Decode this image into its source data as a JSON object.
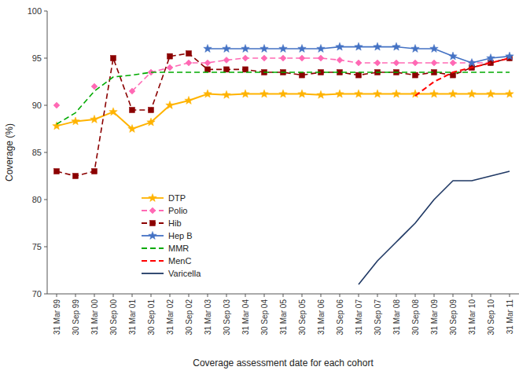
{
  "chart_data": {
    "type": "line",
    "xlabel": "Coverage assessment date for each cohort",
    "ylabel": "Coverage (%)",
    "categories": [
      "31 Mar 99",
      "30 Sep 99",
      "31 Mar 00",
      "30 Sep 00",
      "31 Mar 01",
      "30 Sep 01",
      "31 Mar 02",
      "30 Sep 02",
      "31 Mar 03",
      "30 Sep 03",
      "31 Mar 04",
      "30 Sep 04",
      "31 Mar 05",
      "30 Sep 05",
      "31 Mar 06",
      "30 Sep 06",
      "31 Mar 07",
      "30 Sep 07",
      "31 Mar 08",
      "30 Sep 08",
      "31 Mar 09",
      "30 Sep 09",
      "31 Mar 10",
      "30 Sep 10",
      "31 Mar 11"
    ],
    "series": [
      {
        "name": "DTP",
        "color": "#FFB300",
        "line_style": "solid",
        "marker": "star",
        "values": [
          87.8,
          88.3,
          88.5,
          89.3,
          87.5,
          88.2,
          90.0,
          90.5,
          91.2,
          91.1,
          91.2,
          91.2,
          91.2,
          91.2,
          91.1,
          91.2,
          91.2,
          91.2,
          91.2,
          91.2,
          91.2,
          91.2,
          91.2,
          91.2,
          91.2
        ]
      },
      {
        "name": "Polio",
        "color": "#FF69B4",
        "line_style": "dashed",
        "marker": "diamond",
        "values": [
          90.0,
          null,
          92.0,
          null,
          91.5,
          93.5,
          94.0,
          94.5,
          94.5,
          94.8,
          95.0,
          95.0,
          95.0,
          95.0,
          95.0,
          94.8,
          94.5,
          94.5,
          94.5,
          94.5,
          94.5,
          94.5,
          94.5,
          94.5,
          95.0
        ]
      },
      {
        "name": "Hib",
        "color": "#8B0000",
        "line_style": "dashed",
        "marker": "square",
        "values": [
          83.0,
          82.5,
          83.0,
          95.0,
          89.5,
          89.5,
          95.2,
          95.5,
          93.8,
          93.8,
          93.8,
          93.5,
          93.5,
          93.2,
          93.5,
          93.5,
          93.2,
          93.5,
          93.5,
          93.2,
          93.5,
          93.2,
          94.0,
          94.5,
          95.0
        ]
      },
      {
        "name": "Hep B",
        "color": "#4472C4",
        "line_style": "solid",
        "marker": "star",
        "values": [
          null,
          null,
          null,
          null,
          null,
          null,
          null,
          null,
          96.0,
          96.0,
          96.0,
          96.0,
          96.0,
          96.0,
          96.0,
          96.2,
          96.2,
          96.2,
          96.2,
          96.0,
          96.0,
          95.2,
          94.5,
          95.0,
          95.2
        ]
      },
      {
        "name": "MMR",
        "color": "#00AA00",
        "line_style": "dashed",
        "values": [
          88.0,
          89.2,
          91.5,
          93.0,
          93.2,
          93.5,
          93.5,
          93.5,
          93.5,
          93.5,
          93.5,
          93.5,
          93.5,
          93.5,
          93.5,
          93.5,
          93.5,
          93.5,
          93.5,
          93.5,
          93.5,
          93.5,
          93.5,
          93.5,
          93.5
        ]
      },
      {
        "name": "MenC",
        "color": "#FF0000",
        "line_style": "dashed",
        "values": [
          null,
          null,
          null,
          null,
          null,
          null,
          null,
          null,
          null,
          null,
          null,
          null,
          null,
          null,
          null,
          null,
          null,
          null,
          null,
          91.0,
          92.5,
          93.5,
          94.0,
          94.5,
          95.0
        ]
      },
      {
        "name": "Varicella",
        "color": "#1F3864",
        "line_style": "solid",
        "values": [
          null,
          null,
          null,
          null,
          null,
          null,
          null,
          null,
          null,
          null,
          null,
          null,
          null,
          null,
          null,
          null,
          71.0,
          73.5,
          75.5,
          77.5,
          80.0,
          82.0,
          82.0,
          82.5,
          83.0
        ]
      }
    ],
    "ylim": [
      70,
      100
    ],
    "yticks": [
      70,
      75,
      80,
      85,
      90,
      95,
      100
    ],
    "grid": false,
    "legend": "lower left"
  }
}
